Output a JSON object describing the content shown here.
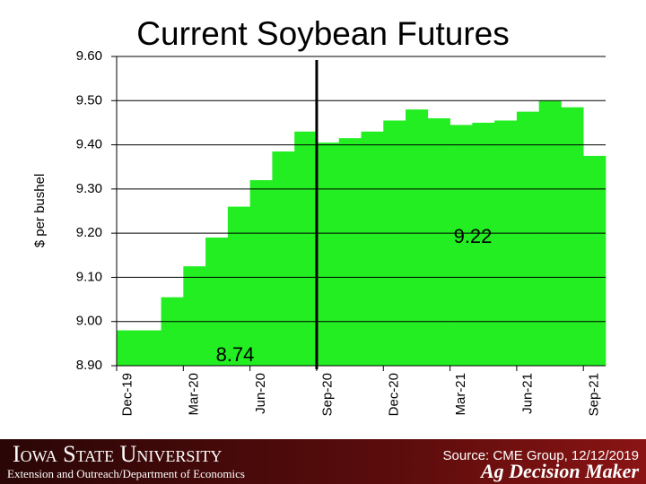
{
  "chart_data": {
    "type": "bar",
    "title": "Current Soybean Futures",
    "y_label": "$ per bushel",
    "categories": [
      "Dec-19",
      null,
      null,
      "Mar-20",
      null,
      null,
      "Jun-20",
      null,
      null,
      "Sep-20",
      null,
      null,
      "Dec-20",
      null,
      null,
      "Mar-21",
      null,
      null,
      "Jun-21",
      null,
      null,
      "Sep-21"
    ],
    "values": [
      8.98,
      8.98,
      9.055,
      9.125,
      9.19,
      9.26,
      9.32,
      9.385,
      9.43,
      9.405,
      9.415,
      9.43,
      9.455,
      9.48,
      9.46,
      9.445,
      9.45,
      9.455,
      9.475,
      9.5,
      9.485,
      9.375
    ],
    "color": "#22ee22",
    "ylim": [
      8.9,
      9.6
    ],
    "yticks": [
      {
        "value": 8.9,
        "label": "8.90"
      },
      {
        "value": 9.0,
        "label": "9.00"
      },
      {
        "value": 9.1,
        "label": "9.10"
      },
      {
        "value": 9.2,
        "label": "9.20"
      },
      {
        "value": 9.3,
        "label": "9.30"
      },
      {
        "value": 9.4,
        "label": "9.40"
      },
      {
        "value": 9.5,
        "label": "9.50"
      },
      {
        "value": 9.6,
        "label": "9.60"
      }
    ],
    "grid": true,
    "annotations": [
      "9.22",
      "8.74"
    ]
  },
  "footer": {
    "university": "Iowa State University",
    "department": "Extension and Outreach/Department of Economics",
    "source": "Source: CME Group, 12/12/2019",
    "brand": "Ag Decision Maker"
  }
}
